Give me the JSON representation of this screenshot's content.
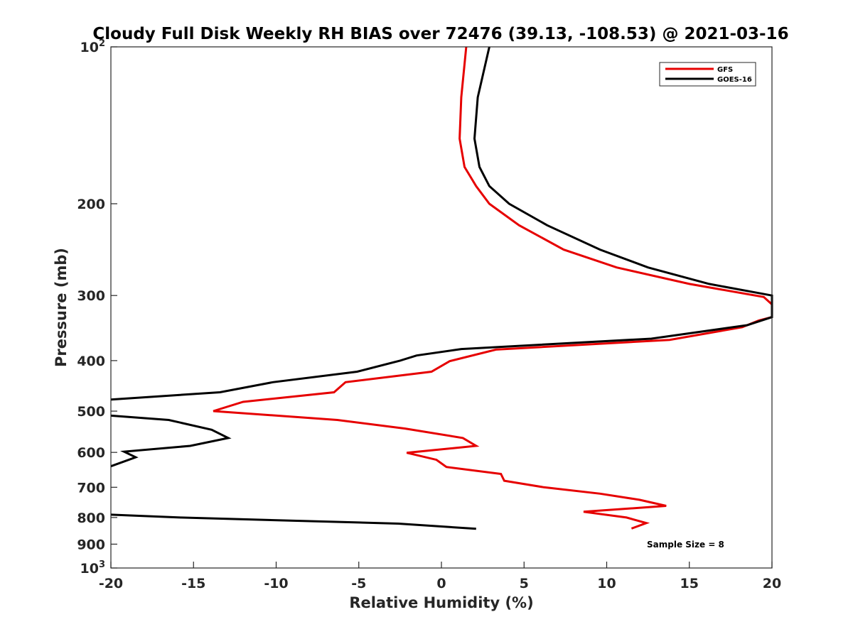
{
  "chart_data": {
    "type": "line",
    "title": "Cloudy Full Disk Weekly RH BIAS over 72476 (39.13, -108.53) @ 2021-03-16",
    "xlabel": "Relative Humidity (%)",
    "ylabel": "Pressure (mb)",
    "xlim": [
      -20,
      20
    ],
    "ylim": [
      100,
      1000
    ],
    "y_scale": "log",
    "y_reversed": true,
    "grid": false,
    "legend_position": "top-right",
    "x_ticks": [
      "-20",
      "-15",
      "-10",
      "-5",
      "0",
      "5",
      "10",
      "15",
      "20"
    ],
    "y_ticks": [
      {
        "base": "10",
        "exp": "2"
      },
      {
        "base": "200",
        "exp": ""
      },
      {
        "base": "300",
        "exp": ""
      },
      {
        "base": "400",
        "exp": ""
      },
      {
        "base": "500",
        "exp": ""
      },
      {
        "base": "600",
        "exp": ""
      },
      {
        "base": "700",
        "exp": ""
      },
      {
        "base": "800",
        "exp": ""
      },
      {
        "base": "900",
        "exp": ""
      },
      {
        "base": "10",
        "exp": "3"
      }
    ],
    "annotation": "Sample Size = 8",
    "series": [
      {
        "name": "GFS",
        "color": "#e60000",
        "points": [
          {
            "x": 1.5,
            "y": 100
          },
          {
            "x": 1.2,
            "y": 125
          },
          {
            "x": 1.1,
            "y": 150
          },
          {
            "x": 1.4,
            "y": 170
          },
          {
            "x": 2.1,
            "y": 185
          },
          {
            "x": 2.9,
            "y": 200
          },
          {
            "x": 4.7,
            "y": 220
          },
          {
            "x": 7.4,
            "y": 245
          },
          {
            "x": 10.6,
            "y": 265
          },
          {
            "x": 15.0,
            "y": 285
          },
          {
            "x": 19.5,
            "y": 302
          },
          {
            "x": 20.0,
            "y": 312
          },
          {
            "x": 20.0,
            "y": 330
          },
          {
            "x": 19.2,
            "y": 335
          },
          {
            "x": 18.2,
            "y": 345
          },
          {
            "x": 13.8,
            "y": 365
          },
          {
            "x": 3.3,
            "y": 381
          },
          {
            "x": 0.5,
            "y": 401
          },
          {
            "x": -0.6,
            "y": 420
          },
          {
            "x": -5.8,
            "y": 440
          },
          {
            "x": -6.5,
            "y": 460
          },
          {
            "x": -12.0,
            "y": 480
          },
          {
            "x": -13.8,
            "y": 500
          },
          {
            "x": -6.3,
            "y": 520
          },
          {
            "x": -2.2,
            "y": 540
          },
          {
            "x": 1.3,
            "y": 563
          },
          {
            "x": 2.1,
            "y": 583
          },
          {
            "x": -2.1,
            "y": 601
          },
          {
            "x": -0.3,
            "y": 620
          },
          {
            "x": 0.3,
            "y": 640
          },
          {
            "x": 3.6,
            "y": 660
          },
          {
            "x": 3.8,
            "y": 680
          },
          {
            "x": 6.2,
            "y": 700
          },
          {
            "x": 9.6,
            "y": 720
          },
          {
            "x": 12.0,
            "y": 740
          },
          {
            "x": 13.6,
            "y": 760
          },
          {
            "x": 8.6,
            "y": 780
          },
          {
            "x": 11.2,
            "y": 800
          },
          {
            "x": 12.4,
            "y": 820
          },
          {
            "x": 11.5,
            "y": 840
          }
        ]
      },
      {
        "name": "GOES-16",
        "color": "#000000",
        "points": [
          {
            "x": 2.9,
            "y": 100
          },
          {
            "x": 2.2,
            "y": 125
          },
          {
            "x": 2.0,
            "y": 150
          },
          {
            "x": 2.3,
            "y": 170
          },
          {
            "x": 2.9,
            "y": 185
          },
          {
            "x": 4.1,
            "y": 200
          },
          {
            "x": 6.4,
            "y": 220
          },
          {
            "x": 9.6,
            "y": 245
          },
          {
            "x": 12.5,
            "y": 265
          },
          {
            "x": 16.2,
            "y": 285
          },
          {
            "x": 20.0,
            "y": 300
          },
          {
            "x": 20.0,
            "y": 330
          },
          {
            "x": 18.5,
            "y": 342
          },
          {
            "x": 12.7,
            "y": 363
          },
          {
            "x": 1.2,
            "y": 380
          },
          {
            "x": -1.5,
            "y": 391
          },
          {
            "x": -2.5,
            "y": 400
          },
          {
            "x": -5.1,
            "y": 420
          },
          {
            "x": -10.2,
            "y": 440
          },
          {
            "x": -13.4,
            "y": 460
          },
          {
            "x": -20.0,
            "y": 475
          },
          {
            "x": null,
            "y": 490
          },
          {
            "x": -20.0,
            "y": 510
          },
          {
            "x": -16.5,
            "y": 520
          },
          {
            "x": -13.9,
            "y": 543
          },
          {
            "x": -12.9,
            "y": 563
          },
          {
            "x": -15.2,
            "y": 583
          },
          {
            "x": -19.2,
            "y": 598
          },
          {
            "x": -18.5,
            "y": 613
          },
          {
            "x": -20.0,
            "y": 638
          },
          {
            "x": null,
            "y": 700
          },
          {
            "x": -20.0,
            "y": 790
          },
          {
            "x": -15.8,
            "y": 800
          },
          {
            "x": -2.6,
            "y": 822
          },
          {
            "x": 2.1,
            "y": 841
          }
        ]
      }
    ]
  }
}
